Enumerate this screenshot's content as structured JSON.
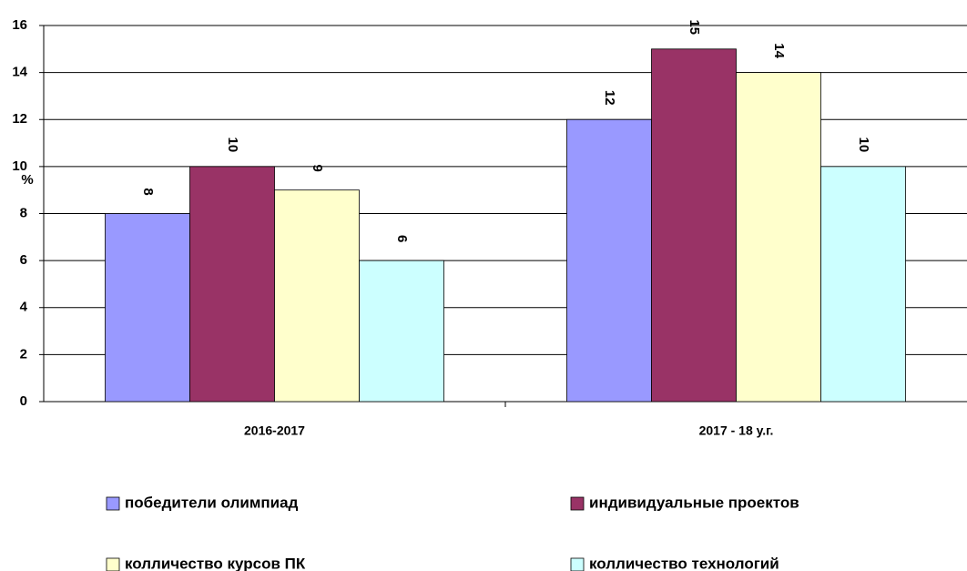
{
  "chart_data": {
    "type": "bar",
    "ylabel": "%",
    "categories": [
      "2016-2017",
      "2017 - 18 у.г."
    ],
    "series": [
      {
        "name": "победители олимпиад",
        "color": "#9999ff",
        "values": [
          8,
          12
        ]
      },
      {
        "name": "индивидуальные проектов",
        "color": "#993366",
        "values": [
          10,
          15
        ]
      },
      {
        "name": "колличество курсов ПК",
        "color": "#ffffcc",
        "values": [
          9,
          14
        ]
      },
      {
        "name": "колличество технологий",
        "color": "#ccffff",
        "values": [
          6,
          10
        ]
      }
    ],
    "ylim": [
      0,
      16
    ],
    "yticks": [
      0,
      2,
      4,
      6,
      8,
      10,
      12,
      14,
      16
    ],
    "grid": true
  }
}
